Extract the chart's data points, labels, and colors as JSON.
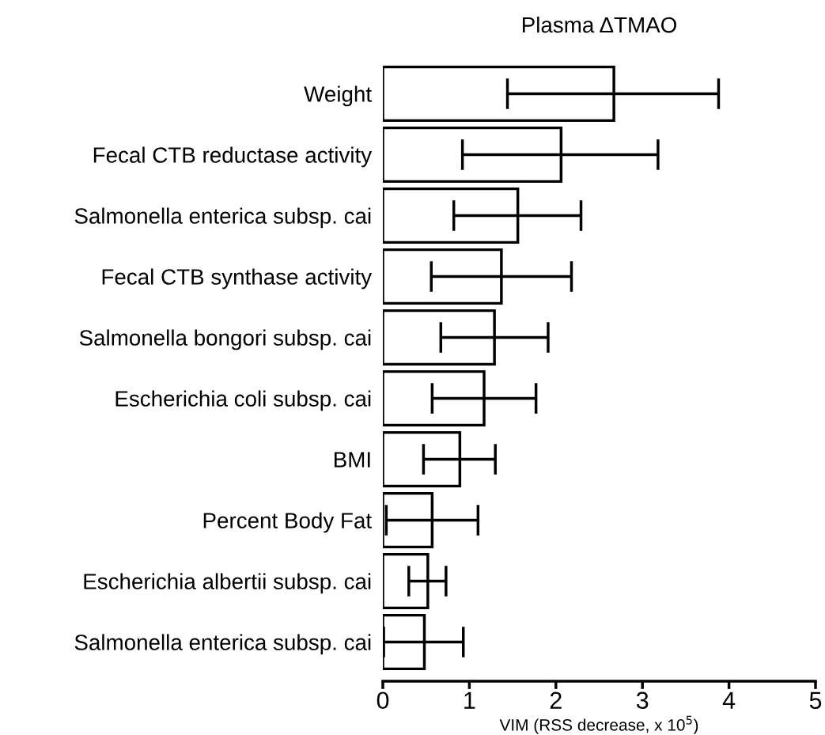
{
  "chart_data": {
    "type": "bar",
    "orientation": "horizontal",
    "title": "Plasma ΔTMAO",
    "xlabel": "VIM (RSS decrease, x 10$^{5}$)",
    "categories": [
      "Weight",
      "Fecal CTB reductase activity",
      "Salmonella enterica subsp. cai",
      "Fecal CTB synthase activity",
      "Salmonella bongori subsp. cai",
      "Escherichia coli subsp. cai",
      "BMI",
      "Percent Body Fat",
      "Escherichia albertii subsp. cai",
      "Salmonella enterica subsp. cai"
    ],
    "values": [
      2.67,
      2.06,
      1.56,
      1.37,
      1.29,
      1.17,
      0.89,
      0.57,
      0.52,
      0.48
    ],
    "errors": [
      [
        1.44,
        3.88
      ],
      [
        0.92,
        3.18
      ],
      [
        0.82,
        2.29
      ],
      [
        0.56,
        2.18
      ],
      [
        0.67,
        1.91
      ],
      [
        0.57,
        1.77
      ],
      [
        0.47,
        1.3
      ],
      [
        0.04,
        1.1
      ],
      [
        0.3,
        0.73
      ],
      [
        0.01,
        0.93
      ]
    ],
    "color": "#ffffff",
    "xlim": [
      0,
      5
    ],
    "xticks": [
      0,
      1,
      2,
      3,
      4,
      5
    ],
    "grid": false
  }
}
